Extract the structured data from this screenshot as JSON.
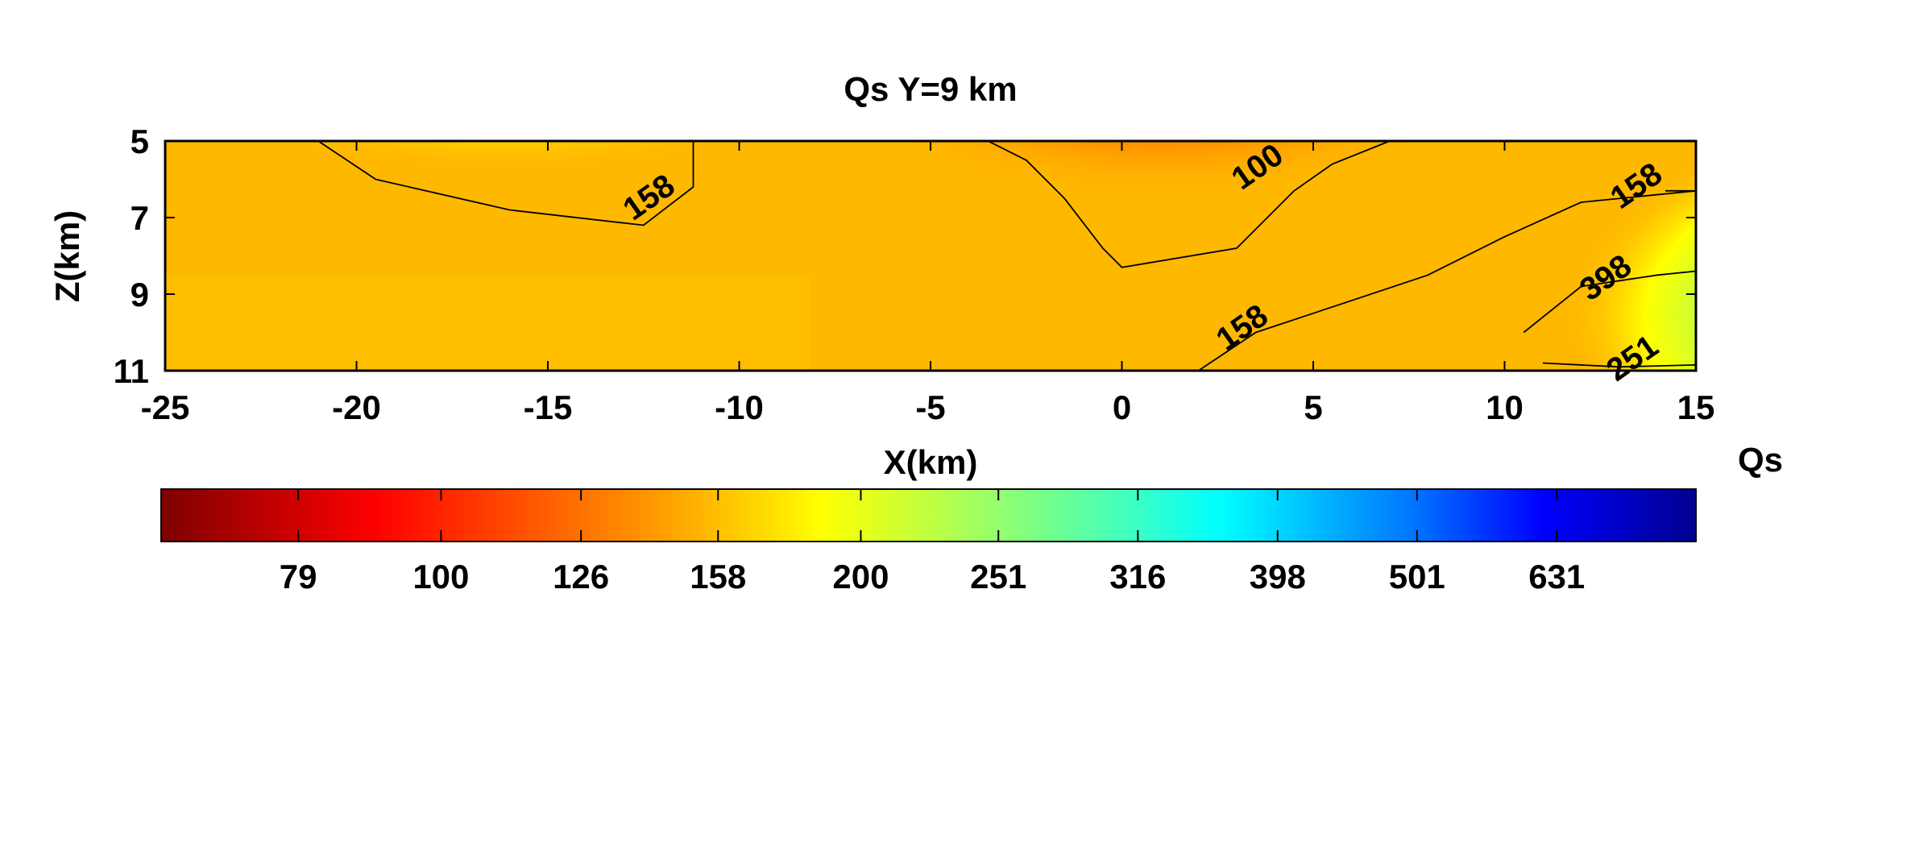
{
  "chart_data": {
    "type": "heatmap",
    "title": "Qs Y=9 km",
    "xlabel": "X(km)",
    "ylabel": "Z(km)",
    "xlim": [
      -25,
      15
    ],
    "ylim": [
      5,
      11
    ],
    "y_reversed": true,
    "x_ticks": [
      "-25",
      "-20",
      "-15",
      "-10",
      "-5",
      "0",
      "5",
      "10",
      "15"
    ],
    "y_ticks": [
      "5",
      "7",
      "9",
      "11"
    ],
    "colorbar": {
      "label": "Qs",
      "scale": "log",
      "orientation": "horizontal",
      "colormap": "jet-reversed",
      "range": [
        63,
        794
      ],
      "tick_labels": [
        "79",
        "100",
        "126",
        "158",
        "200",
        "251",
        "316",
        "398",
        "501",
        "631"
      ]
    },
    "contours": [
      {
        "level": "158",
        "points": [
          [
            -21,
            5
          ],
          [
            -19.5,
            6
          ],
          [
            -16,
            6.8
          ],
          [
            -12.5,
            7.2
          ],
          [
            -11.2,
            6.2
          ],
          [
            -11.2,
            5
          ]
        ],
        "label_at": [
          -12.2,
          6.7
        ]
      },
      {
        "level": "100",
        "points": [
          [
            -3.5,
            5
          ],
          [
            -2.5,
            5.5
          ],
          [
            -1.5,
            6.5
          ],
          [
            -0.5,
            7.8
          ],
          [
            0,
            8.3
          ],
          [
            3,
            7.8
          ],
          [
            4.5,
            6.3
          ],
          [
            5.5,
            5.6
          ],
          [
            7,
            5
          ]
        ],
        "label_at": [
          3.7,
          5.9
        ]
      },
      {
        "level": "158",
        "points": [
          [
            2,
            11
          ],
          [
            3.5,
            10
          ],
          [
            5,
            9.5
          ],
          [
            8,
            8.5
          ],
          [
            10,
            7.5
          ],
          [
            12,
            6.6
          ],
          [
            15,
            6.3
          ]
        ],
        "label_at": [
          3.3,
          10.1
        ]
      },
      {
        "level": "158",
        "points": [
          [
            14.2,
            6.3
          ],
          [
            15,
            6.3
          ]
        ],
        "label_at": [
          13.6,
          6.4
        ]
      },
      {
        "level": "398",
        "points": [
          [
            10.5,
            10
          ],
          [
            12,
            8.8
          ],
          [
            14,
            8.5
          ],
          [
            15,
            8.4
          ]
        ],
        "label_at": [
          12.8,
          8.8
        ]
      },
      {
        "level": "251",
        "points": [
          [
            11,
            10.8
          ],
          [
            13,
            10.9
          ],
          [
            15,
            10.85
          ]
        ],
        "label_at": [
          13.5,
          10.9
        ]
      }
    ]
  }
}
